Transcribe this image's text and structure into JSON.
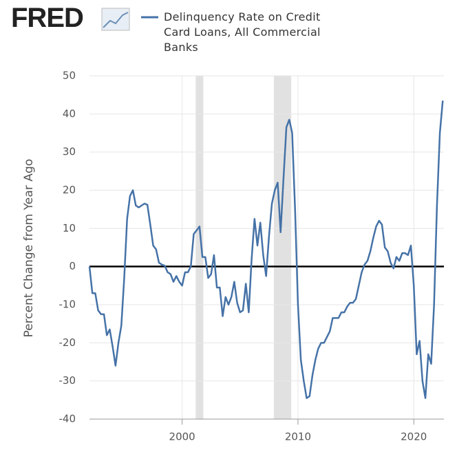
{
  "chart_data": {
    "type": "line",
    "logo": "FRED",
    "y_label": "Percent Change from Year Ago",
    "x": [
      1992.0,
      1992.25,
      1992.5,
      1992.75,
      1993.0,
      1993.25,
      1993.5,
      1993.75,
      1994.0,
      1994.25,
      1994.5,
      1994.75,
      1995.0,
      1995.25,
      1995.5,
      1995.75,
      1996.0,
      1996.25,
      1996.5,
      1996.75,
      1997.0,
      1997.25,
      1997.5,
      1997.75,
      1998.0,
      1998.25,
      1998.5,
      1998.75,
      1999.0,
      1999.25,
      1999.5,
      1999.75,
      2000.0,
      2000.25,
      2000.5,
      2000.75,
      2001.0,
      2001.25,
      2001.5,
      2001.75,
      2002.0,
      2002.25,
      2002.5,
      2002.75,
      2003.0,
      2003.25,
      2003.5,
      2003.75,
      2004.0,
      2004.25,
      2004.5,
      2004.75,
      2005.0,
      2005.25,
      2005.5,
      2005.75,
      2006.0,
      2006.25,
      2006.5,
      2006.75,
      2007.0,
      2007.25,
      2007.5,
      2007.75,
      2008.0,
      2008.25,
      2008.5,
      2008.75,
      2009.0,
      2009.25,
      2009.5,
      2009.75,
      2010.0,
      2010.25,
      2010.5,
      2010.75,
      2011.0,
      2011.25,
      2011.5,
      2011.75,
      2012.0,
      2012.25,
      2012.5,
      2012.75,
      2013.0,
      2013.25,
      2013.5,
      2013.75,
      2014.0,
      2014.25,
      2014.5,
      2014.75,
      2015.0,
      2015.25,
      2015.5,
      2015.75,
      2016.0,
      2016.25,
      2016.5,
      2016.75,
      2017.0,
      2017.25,
      2017.5,
      2017.75,
      2018.0,
      2018.25,
      2018.5,
      2018.75,
      2019.0,
      2019.25,
      2019.5,
      2019.75,
      2020.0,
      2020.25,
      2020.5,
      2020.75,
      2021.0,
      2021.25,
      2021.5,
      2021.75,
      2022.0,
      2022.25,
      2022.5
    ],
    "series": [
      {
        "name": "Delinquency Rate on Credit Card Loans, All Commercial Banks",
        "color": "#4572a7",
        "values": [
          0,
          -7,
          -7,
          -11.5,
          -12.5,
          -12.5,
          -18,
          -16.5,
          -21,
          -26,
          -20,
          -15.5,
          -3,
          12.5,
          18.5,
          20,
          16,
          15.5,
          16,
          16.5,
          16.2,
          11,
          5.5,
          4.5,
          1,
          0.5,
          0.2,
          -1.5,
          -2,
          -4,
          -2.5,
          -4,
          -5,
          -1.5,
          -1.5,
          0,
          8.5,
          9.5,
          10.5,
          2.5,
          2.5,
          -3,
          -2,
          3,
          -5.5,
          -5.5,
          -13,
          -8,
          -10,
          -8,
          -4,
          -9.5,
          -12,
          -11.5,
          -4.5,
          -12,
          2,
          12.5,
          5.5,
          11.5,
          3,
          -2.5,
          8,
          16.5,
          20,
          22,
          9,
          23,
          36.5,
          38.5,
          35,
          15,
          -10,
          -24.5,
          -30,
          -34.5,
          -34,
          -28.5,
          -24.5,
          -21.5,
          -20,
          -20,
          -18.5,
          -17,
          -13.5,
          -13.5,
          -13.5,
          -12,
          -12,
          -10.5,
          -9.5,
          -9.5,
          -8.5,
          -5,
          -1.5,
          0.5,
          1.5,
          4,
          7.5,
          10.5,
          12,
          11,
          5,
          4,
          1,
          -0.5,
          2.5,
          1.5,
          3.5,
          3.5,
          3,
          5.5,
          -5,
          -23,
          -19.5,
          -30,
          -34.5,
          -23,
          -25.5,
          -10,
          16,
          35,
          43.5
        ]
      }
    ],
    "xlim": [
      1992,
      2022.6
    ],
    "xticks": [
      2000,
      2010,
      2020
    ],
    "ylim": [
      -40,
      50
    ],
    "yticks": [
      -40,
      -30,
      -20,
      -10,
      0,
      10,
      20,
      30,
      40,
      50
    ],
    "recessions": [
      [
        2001.17,
        2001.83
      ],
      [
        2007.92,
        2009.42
      ]
    ],
    "reference_line": 0,
    "grid": true
  }
}
